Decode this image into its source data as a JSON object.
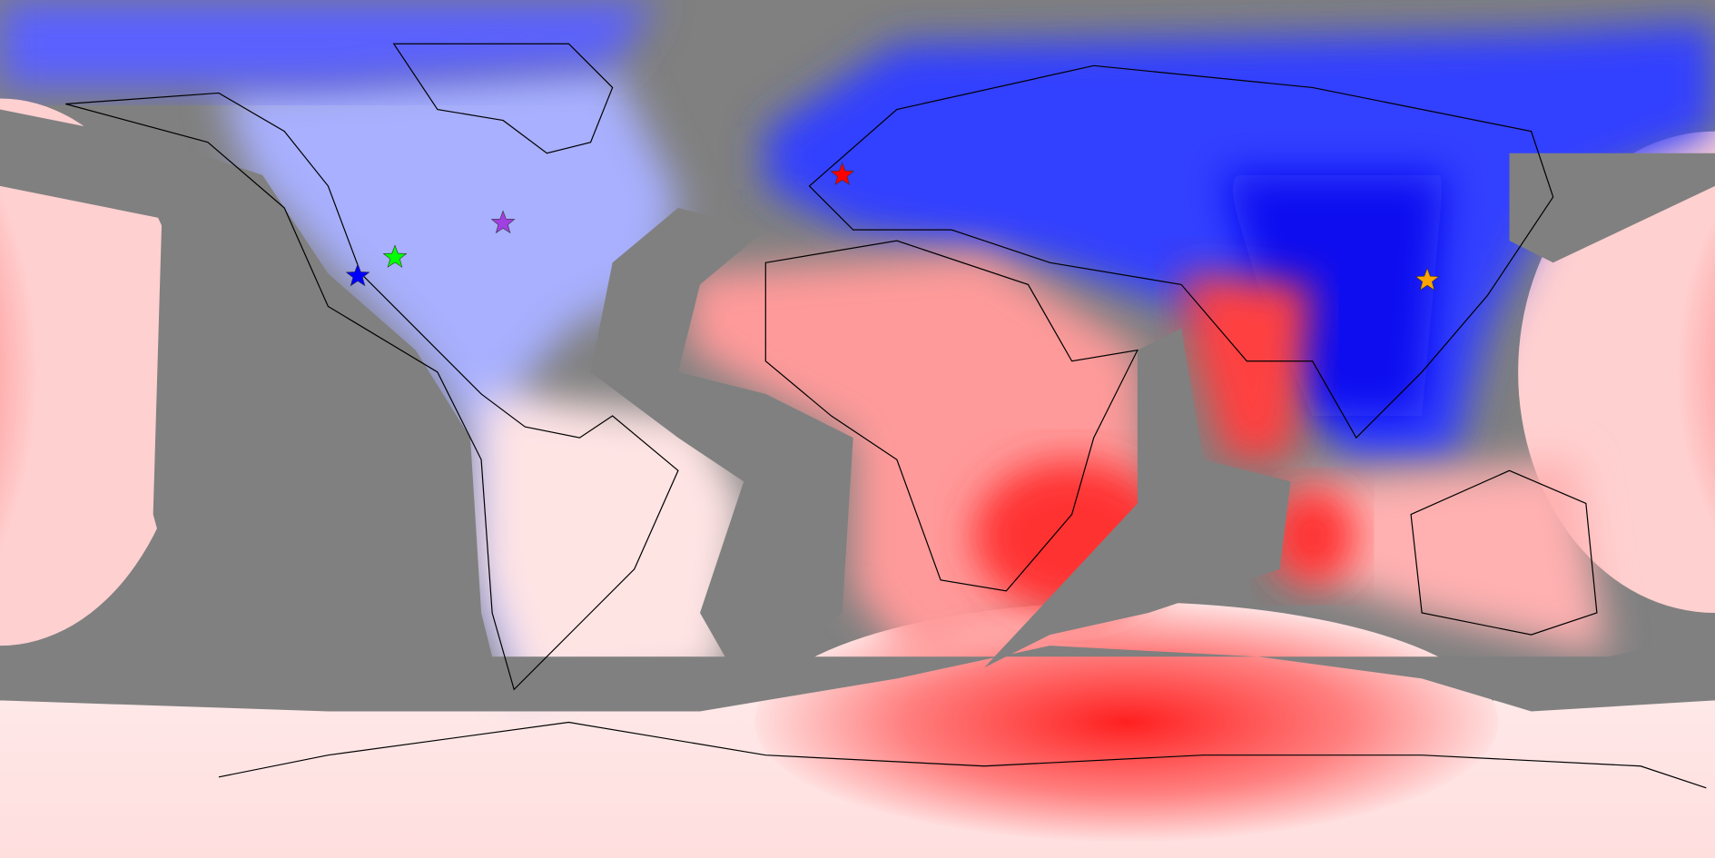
{
  "map": {
    "projection": "equirectangular",
    "markers": [
      {
        "color": "#0000ff",
        "lon": -104.9,
        "lat": 32.1
      },
      {
        "color": "#00ff00",
        "lon": -97.1,
        "lat": 36.0
      },
      {
        "color": "#a040e0",
        "lon": -74.4,
        "lat": 43.2
      },
      {
        "color": "#ff0000",
        "lon": -3.2,
        "lat": 53.3
      },
      {
        "color": "#ffa500",
        "lon": 119.6,
        "lat": 31.2
      }
    ]
  }
}
